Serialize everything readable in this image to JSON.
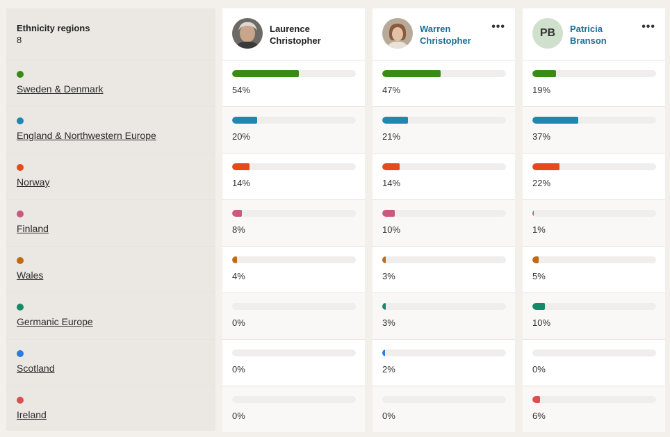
{
  "regions_header": {
    "title": "Ethnicity regions",
    "count": "8"
  },
  "regions": [
    {
      "name": "Sweden & Denmark",
      "color": "#3a8a14"
    },
    {
      "name": "England & Northwestern Europe",
      "color": "#1e88b0"
    },
    {
      "name": "Norway",
      "color": "#e54a18"
    },
    {
      "name": "Finland",
      "color": "#c85a80"
    },
    {
      "name": "Wales",
      "color": "#c06a12"
    },
    {
      "name": "Germanic Europe",
      "color": "#148a6a"
    },
    {
      "name": "Scotland",
      "color": "#2a7de0"
    },
    {
      "name": "Ireland",
      "color": "#d85050"
    }
  ],
  "people": [
    {
      "first": "Laurence",
      "last": "Christopher",
      "avatar": "photo",
      "has_menu": false,
      "percents": [
        54,
        20,
        14,
        8,
        4,
        0,
        0,
        0
      ],
      "labels": [
        "54%",
        "20%",
        "14%",
        "8%",
        "4%",
        "0%",
        "0%",
        "0%"
      ]
    },
    {
      "first": "Warren",
      "last": "Christopher",
      "avatar": "photo",
      "has_menu": true,
      "percents": [
        47,
        21,
        14,
        10,
        3,
        3,
        2,
        0
      ],
      "labels": [
        "47%",
        "21%",
        "14%",
        "10%",
        "3%",
        "3%",
        "2%",
        "0%"
      ]
    },
    {
      "first": "Patricia",
      "last": "Branson",
      "avatar": "initials",
      "initials": "PB",
      "has_menu": true,
      "percents": [
        19,
        37,
        22,
        1,
        5,
        10,
        0,
        6
      ],
      "labels": [
        "19%",
        "37%",
        "22%",
        "1%",
        "5%",
        "10%",
        "0%",
        "6%"
      ]
    }
  ],
  "menu_glyph": "•••"
}
